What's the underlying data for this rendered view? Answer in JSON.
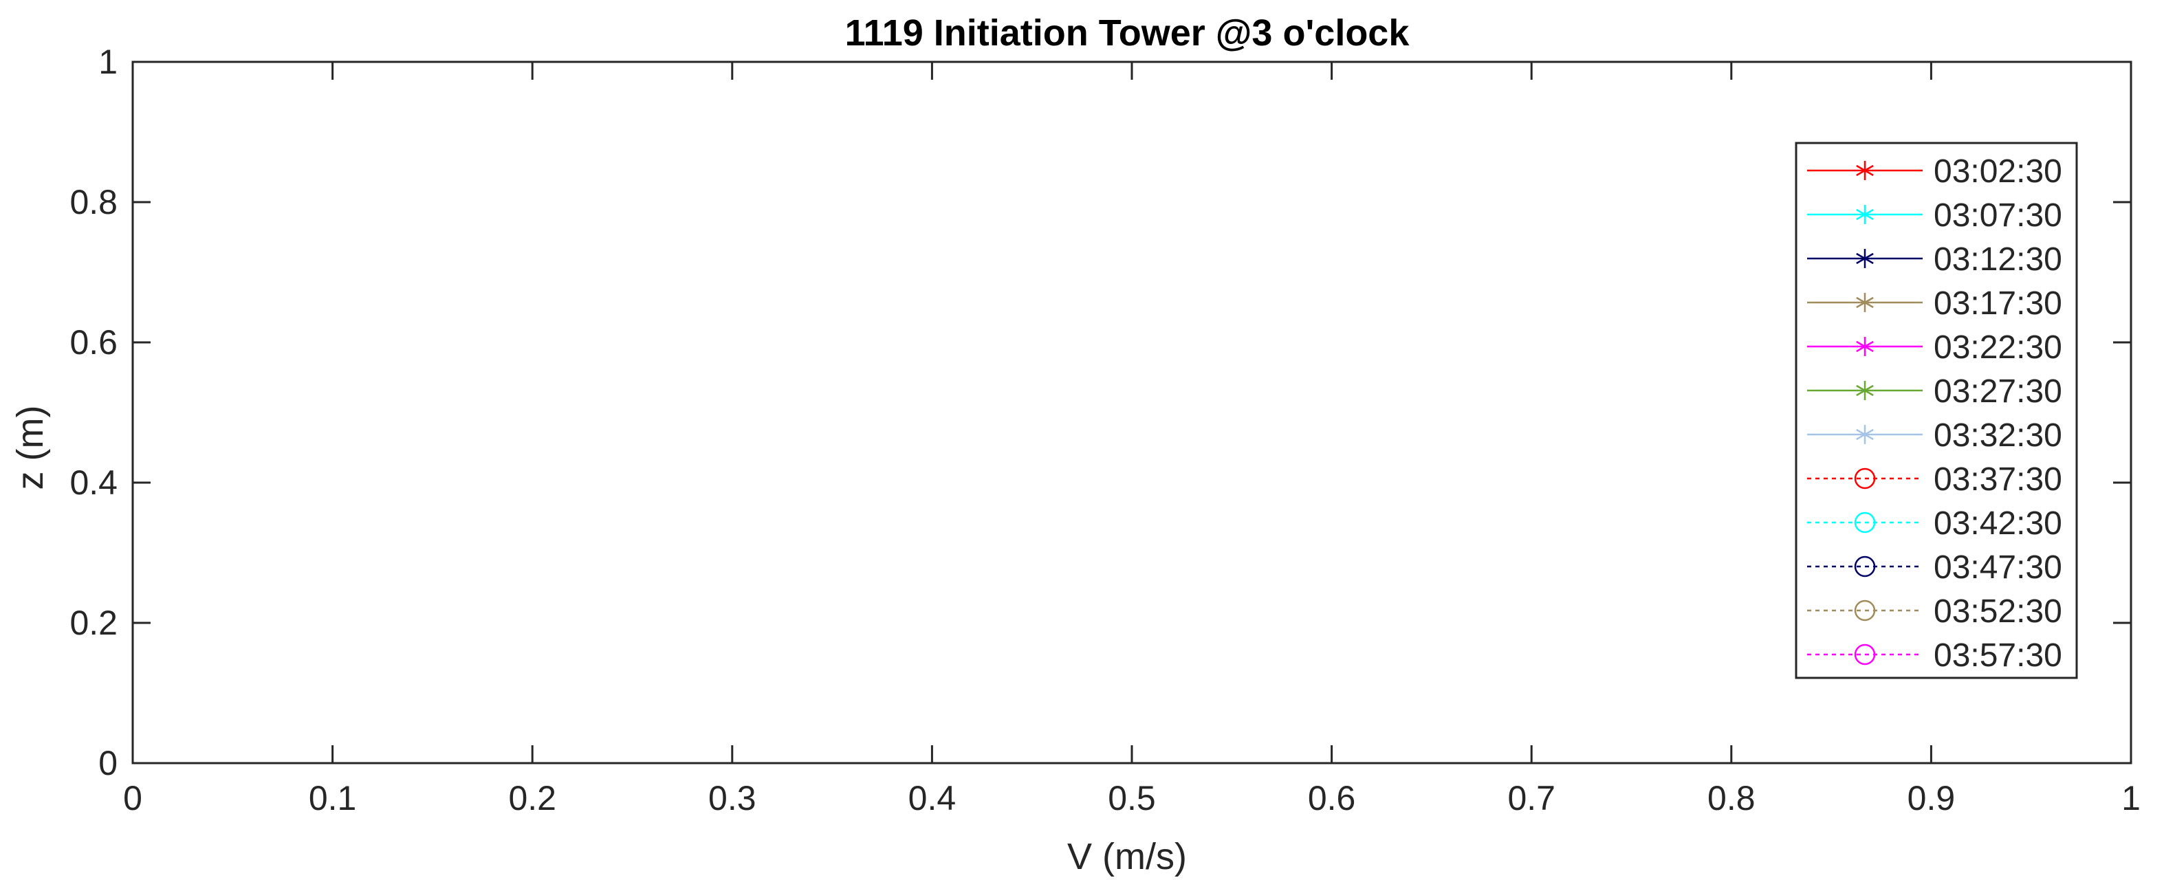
{
  "chart_data": {
    "type": "line",
    "title": "1119 Initiation Tower @3 o'clock",
    "xlabel": "V (m/s)",
    "ylabel": "z (m)",
    "xlim": [
      0,
      1
    ],
    "ylim": [
      0,
      1
    ],
    "xticks": [
      "0",
      "0.1",
      "0.2",
      "0.3",
      "0.4",
      "0.5",
      "0.6",
      "0.7",
      "0.8",
      "0.9",
      "1"
    ],
    "yticks": [
      "0",
      "0.2",
      "0.4",
      "0.6",
      "0.8",
      "1"
    ],
    "grid": false,
    "legend_position": "top-right",
    "series": [
      {
        "name": "03:02:30",
        "color": "#ff0000",
        "marker": "asterisk",
        "line": "solid",
        "values": []
      },
      {
        "name": "03:07:30",
        "color": "#00ffff",
        "marker": "asterisk",
        "line": "solid",
        "values": []
      },
      {
        "name": "03:12:30",
        "color": "#000066",
        "marker": "asterisk",
        "line": "solid",
        "values": []
      },
      {
        "name": "03:17:30",
        "color": "#a08c5a",
        "marker": "asterisk",
        "line": "solid",
        "values": []
      },
      {
        "name": "03:22:30",
        "color": "#ff00ff",
        "marker": "asterisk",
        "line": "solid",
        "values": []
      },
      {
        "name": "03:27:30",
        "color": "#66a832",
        "marker": "asterisk",
        "line": "solid",
        "values": []
      },
      {
        "name": "03:32:30",
        "color": "#a6c4e6",
        "marker": "asterisk",
        "line": "solid",
        "values": []
      },
      {
        "name": "03:37:30",
        "color": "#ff0000",
        "marker": "circle",
        "line": "dotted",
        "values": []
      },
      {
        "name": "03:42:30",
        "color": "#00ffff",
        "marker": "circle",
        "line": "dotted",
        "values": []
      },
      {
        "name": "03:47:30",
        "color": "#000066",
        "marker": "circle",
        "line": "dotted",
        "values": []
      },
      {
        "name": "03:52:30",
        "color": "#a08c5a",
        "marker": "circle",
        "line": "dotted",
        "values": []
      },
      {
        "name": "03:57:30",
        "color": "#ff00ff",
        "marker": "circle",
        "line": "dotted",
        "values": []
      }
    ]
  }
}
